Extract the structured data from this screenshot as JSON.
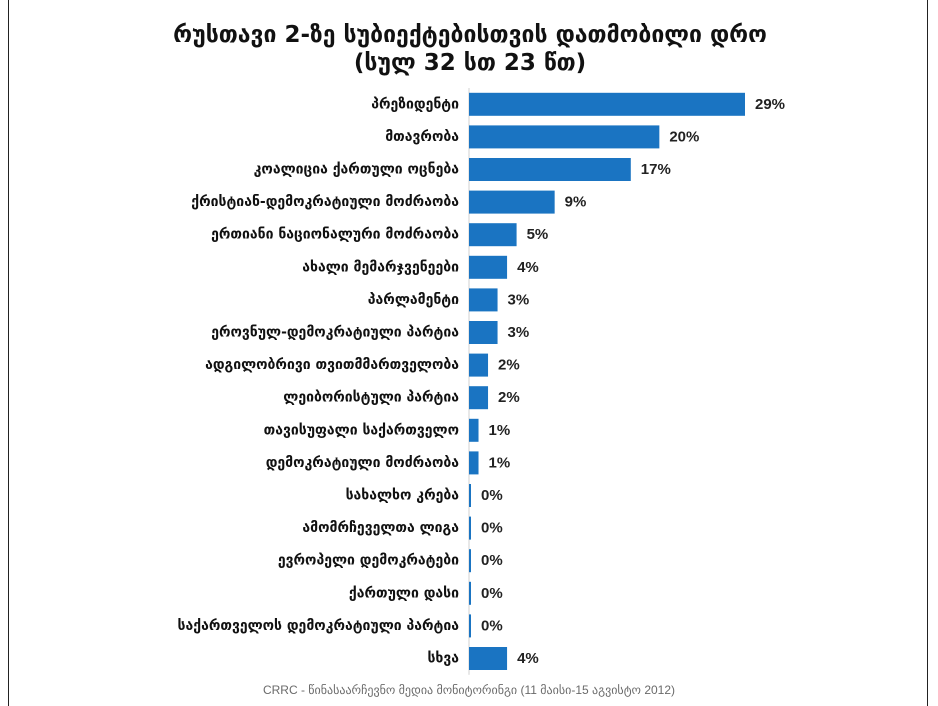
{
  "chart_data": {
    "type": "bar",
    "orientation": "horizontal",
    "title": "რუსთავი 2-ზე სუბიექტებისთვის დათმობილი დრო",
    "subtitle": "(სულ 32 სთ 23 წთ)",
    "categories": [
      "პრეზიდენტი",
      "მთავრობა",
      "კოალიცია ქართული ოცნება",
      "ქრისტიან-დემოკრატიული მოძრაობა",
      "ერთიანი ნაციონალური მოძრაობა",
      "ახალი მემარჯვენეები",
      "პარლამენტი",
      "ეროვნულ-დემოკრატიული პარტია",
      "ადგილობრივი თვითმმართველობა",
      "ლეიბორისტული პარტია",
      "თავისუფალი საქართველო",
      "დემოკრატიული მოძრაობა",
      "სახალხო კრება",
      "ამომრჩეველთა ლიგა",
      "ევროპელი დემოკრატები",
      "ქართული დასი",
      "საქართველოს დემოკრატიული პარტია",
      "სხვა"
    ],
    "values": [
      29,
      20,
      17,
      9,
      5,
      4,
      3,
      3,
      2,
      2,
      1,
      1,
      0,
      0,
      0,
      0,
      0,
      4
    ],
    "value_labels": [
      "29%",
      "20%",
      "17%",
      "9%",
      "5%",
      "4%",
      "3%",
      "3%",
      "2%",
      "2%",
      "1%",
      "1%",
      "0%",
      "0%",
      "0%",
      "0%",
      "0%",
      "4%"
    ],
    "xlim": [
      0,
      29
    ],
    "grid": false,
    "legend": "none",
    "bar_color": "#1a74c2"
  },
  "caption": "CRRC - წინასაარჩევნო მედია მონიტორინგი (11 მაისი-15 აგვისტო 2012)"
}
